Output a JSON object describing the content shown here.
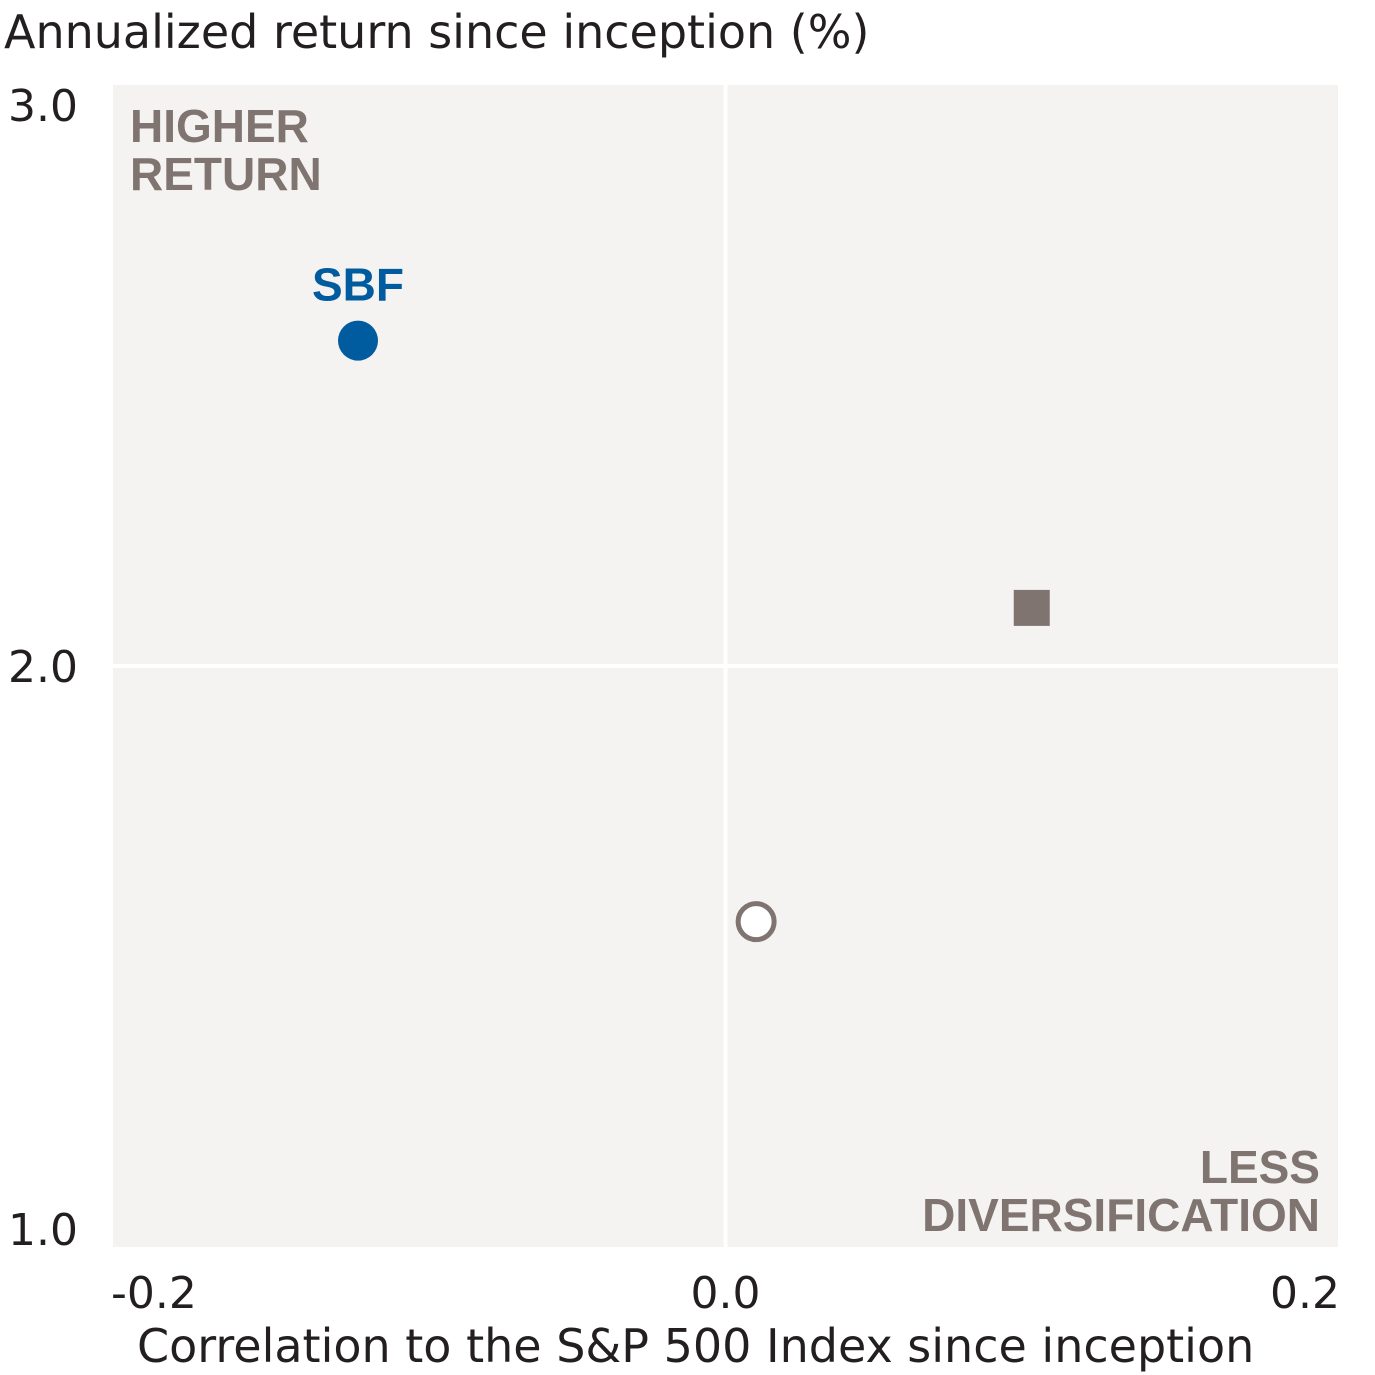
{
  "chart_data": {
    "type": "scatter",
    "ylabel": "Annualized return since inception (%)",
    "xlabel": "Correlation to the S&P 500 Index since inception",
    "xlim": [
      -0.2,
      0.2
    ],
    "ylim": [
      1.0,
      3.0
    ],
    "x_ticks": [
      "-0.2",
      "0.0",
      "0.2"
    ],
    "y_ticks": [
      "1.0",
      "2.0",
      "3.0"
    ],
    "grid": true,
    "corner_labels": {
      "top_left": [
        "HIGHER",
        "RETURN"
      ],
      "bottom_right": [
        "LESS",
        "DIVERSIFICATION"
      ]
    },
    "points": [
      {
        "label": "SBF",
        "x": -0.12,
        "y": 2.56,
        "marker": "circle-filled",
        "color": "#005c9e"
      },
      {
        "label": "",
        "x": 0.1,
        "y": 2.1,
        "marker": "square-filled",
        "color": "#7f7470"
      },
      {
        "label": "",
        "x": 0.01,
        "y": 1.56,
        "marker": "circle-open",
        "color": "#7f7470"
      }
    ],
    "colors": {
      "plot_background": "#f4f3f1",
      "gridline": "#ffffff",
      "text": "#231f20",
      "corner_text": "#7f7470"
    }
  }
}
